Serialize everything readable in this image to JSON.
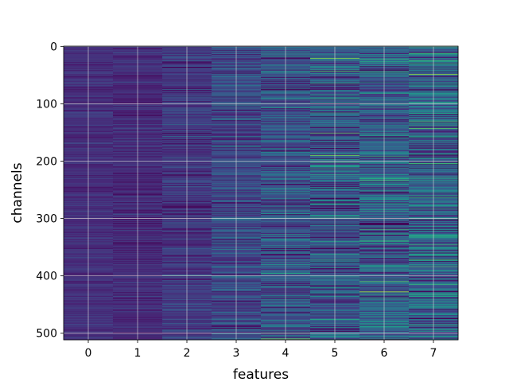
{
  "chart_data": {
    "type": "heatmap",
    "title": "",
    "xlabel": "features",
    "ylabel": "channels",
    "x_ticks": [
      0,
      1,
      2,
      3,
      4,
      5,
      6,
      7
    ],
    "y_ticks": [
      0,
      100,
      200,
      300,
      400,
      500
    ],
    "n_features": 8,
    "n_channels": 512,
    "xlim": [
      -0.5,
      7.5
    ],
    "ylim": [
      511.5,
      -0.5
    ],
    "y_axis_inverted": true,
    "colormap": "viridis",
    "grid": true,
    "column_base_level": [
      0.13,
      0.12,
      0.16,
      0.22,
      0.25,
      0.27,
      0.3,
      0.31
    ],
    "column_spread": [
      0.04,
      0.05,
      0.07,
      0.1,
      0.13,
      0.16,
      0.16,
      0.17
    ],
    "bright_stripes": [
      {
        "feature": 5,
        "channel": 43,
        "value": 0.72
      },
      {
        "feature": 7,
        "channel": 49,
        "value": 0.85
      },
      {
        "feature": 7,
        "channel": 143,
        "value": 0.75
      },
      {
        "feature": 5,
        "channel": 190,
        "value": 0.82
      },
      {
        "feature": 5,
        "channel": 224,
        "value": 0.62
      },
      {
        "feature": 6,
        "channel": 233,
        "value": 0.7
      },
      {
        "feature": 7,
        "channel": 264,
        "value": 0.65
      },
      {
        "feature": 5,
        "channel": 340,
        "value": 0.6
      },
      {
        "feature": 7,
        "channel": 372,
        "value": 0.7
      },
      {
        "feature": 2,
        "channel": 400,
        "value": 0.55
      },
      {
        "feature": 6,
        "channel": 410,
        "value": 0.75
      },
      {
        "feature": 6,
        "channel": 428,
        "value": 0.9
      },
      {
        "feature": 7,
        "channel": 436,
        "value": 0.6
      },
      {
        "feature": 7,
        "channel": 486,
        "value": 0.65
      },
      {
        "feature": 4,
        "channel": 500,
        "value": 0.62
      },
      {
        "feature": 4,
        "channel": 510,
        "value": 0.8
      }
    ],
    "dark_stripes": [
      {
        "feature": 5,
        "channel": 75,
        "value": 0.02
      },
      {
        "feature": 5,
        "channel": 115,
        "value": 0.05
      },
      {
        "feature": 5,
        "channel": 376,
        "value": 0.0
      },
      {
        "feature": 6,
        "channel": 130,
        "value": 0.05
      },
      {
        "feature": 6,
        "channel": 395,
        "value": 0.05
      },
      {
        "feature": 4,
        "channel": 135,
        "value": 0.06
      }
    ],
    "colors": {
      "low": "#440154",
      "mid": "#21918c",
      "high": "#fde725",
      "grid": "#d9d9d9"
    }
  }
}
